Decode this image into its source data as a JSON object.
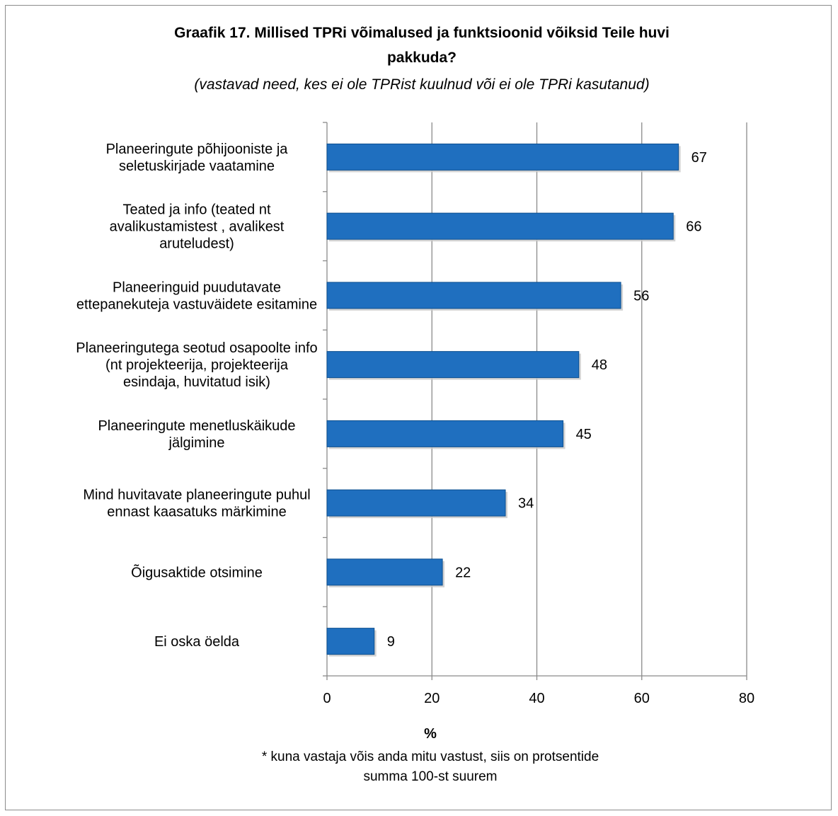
{
  "chart_data": {
    "type": "bar",
    "orientation": "horizontal",
    "title_lines": [
      "Graafik 17. Millised TPRi võimalused ja funktsioonid võiksid Teile huvi",
      "pakkuda?"
    ],
    "subtitle": "(vastavad need, kes ei ole TPRist kuulnud või ei ole TPRi kasutanud)",
    "categories": [
      [
        "Planeeringute põhijooniste ja",
        "seletuskirjade vaatamine"
      ],
      [
        "Teated ja info (teated nt",
        "avalikustamistest , avalikest",
        "aruteludest)"
      ],
      [
        "Planeeringuid puudutavate",
        "ettepanekuteja vastuväidete esitamine"
      ],
      [
        "Planeeringutega seotud osapoolte info",
        "(nt projekteerija, projekteerija",
        "esindaja, huvitatud isik)"
      ],
      [
        "Planeeringute menetluskäikude",
        "jälgimine"
      ],
      [
        "Mind huvitavate planeeringute puhul",
        "ennast kaasatuks märkimine"
      ],
      [
        "Õigusaktide otsimine"
      ],
      [
        "Ei oska öelda"
      ]
    ],
    "values": [
      67,
      66,
      56,
      48,
      45,
      34,
      22,
      9
    ],
    "xlabel": "%",
    "xlim": [
      0,
      80
    ],
    "xticks": [
      "0",
      "20",
      "40",
      "60",
      "80"
    ],
    "grid": true,
    "legend": "none",
    "bar_color": "#1f6fbf",
    "bar_border_color": "#0c4f8f",
    "footnote_lines": [
      "* kuna vastaja võis anda mitu vastust, siis on protsentide",
      "summa 100-st suurem"
    ]
  }
}
